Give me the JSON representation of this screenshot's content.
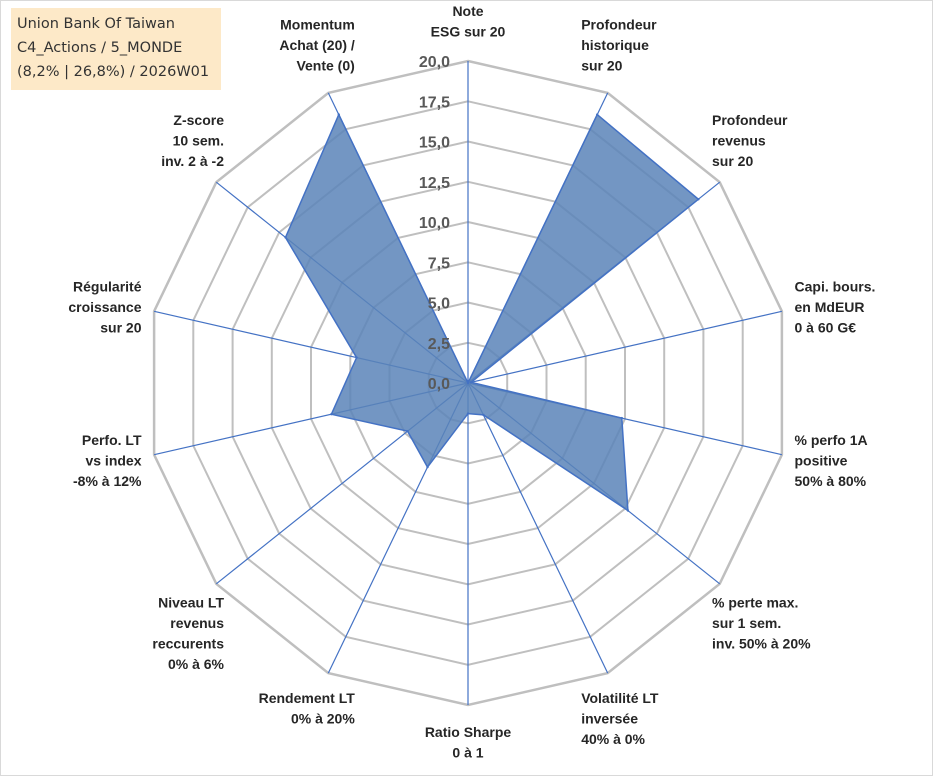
{
  "title_box": {
    "line1": "Union Bank Of Taiwan",
    "line2": "C4_Actions / 5_MONDE",
    "line3": "(8,2% | 26,8%) / 2026W01"
  },
  "chart_data": {
    "type": "radar",
    "title": "Union Bank Of Taiwan",
    "rmin": 0,
    "rmax": 20,
    "ticks": [
      0,
      2.5,
      5,
      7.5,
      10,
      12.5,
      15,
      17.5,
      20
    ],
    "tick_labels": [
      "0,0",
      "2,5",
      "5,0",
      "7,5",
      "10,0",
      "12,5",
      "15,0",
      "17,5",
      "20,0"
    ],
    "axes": [
      {
        "label": [
          "Note",
          "ESG sur 20"
        ],
        "value": 0
      },
      {
        "label": [
          "Profondeur",
          "historique",
          "sur 20"
        ],
        "value": 18.5
      },
      {
        "label": [
          "Profondeur",
          "revenus",
          "sur 20"
        ],
        "value": 18.3
      },
      {
        "label": [
          "Capi. bours.",
          "en MdEUR",
          "0 à 60 G€"
        ],
        "value": 0.2
      },
      {
        "label": [
          "% perfo 1A",
          "positive",
          "50% à 80%"
        ],
        "value": 9.8
      },
      {
        "label": [
          "% perte max.",
          "sur 1 sem.",
          "inv. 50% à 20%"
        ],
        "value": 12.7
      },
      {
        "label": [
          "Volatilité LT",
          "inversée",
          "40% à 0%"
        ],
        "value": 2.2
      },
      {
        "label": [
          "Ratio Sharpe",
          "0 à 1"
        ],
        "value": 1.9
      },
      {
        "label": [
          "Rendement LT",
          "0% à 20%"
        ],
        "value": 5.8
      },
      {
        "label": [
          "Niveau LT",
          "revenus",
          "reccurents",
          "0% à 6%"
        ],
        "value": 4.8
      },
      {
        "label": [
          "Perfo. LT",
          "vs index",
          "-8% à 12%"
        ],
        "value": 8.7
      },
      {
        "label": [
          "Régularité",
          "croissance",
          "sur 20"
        ],
        "value": 7.1
      },
      {
        "label": [
          "Z-score",
          "10 sem.",
          "inv. 2 à -2"
        ],
        "value": 14.5
      },
      {
        "label": [
          "Momentum",
          "Achat (20) /",
          "Vente (0)"
        ],
        "value": 18.5
      }
    ],
    "colors": {
      "fill": "#5b84b8",
      "stroke": "#4472c4",
      "grid": "#bfbfbf",
      "spoke": "#4472c4"
    }
  }
}
